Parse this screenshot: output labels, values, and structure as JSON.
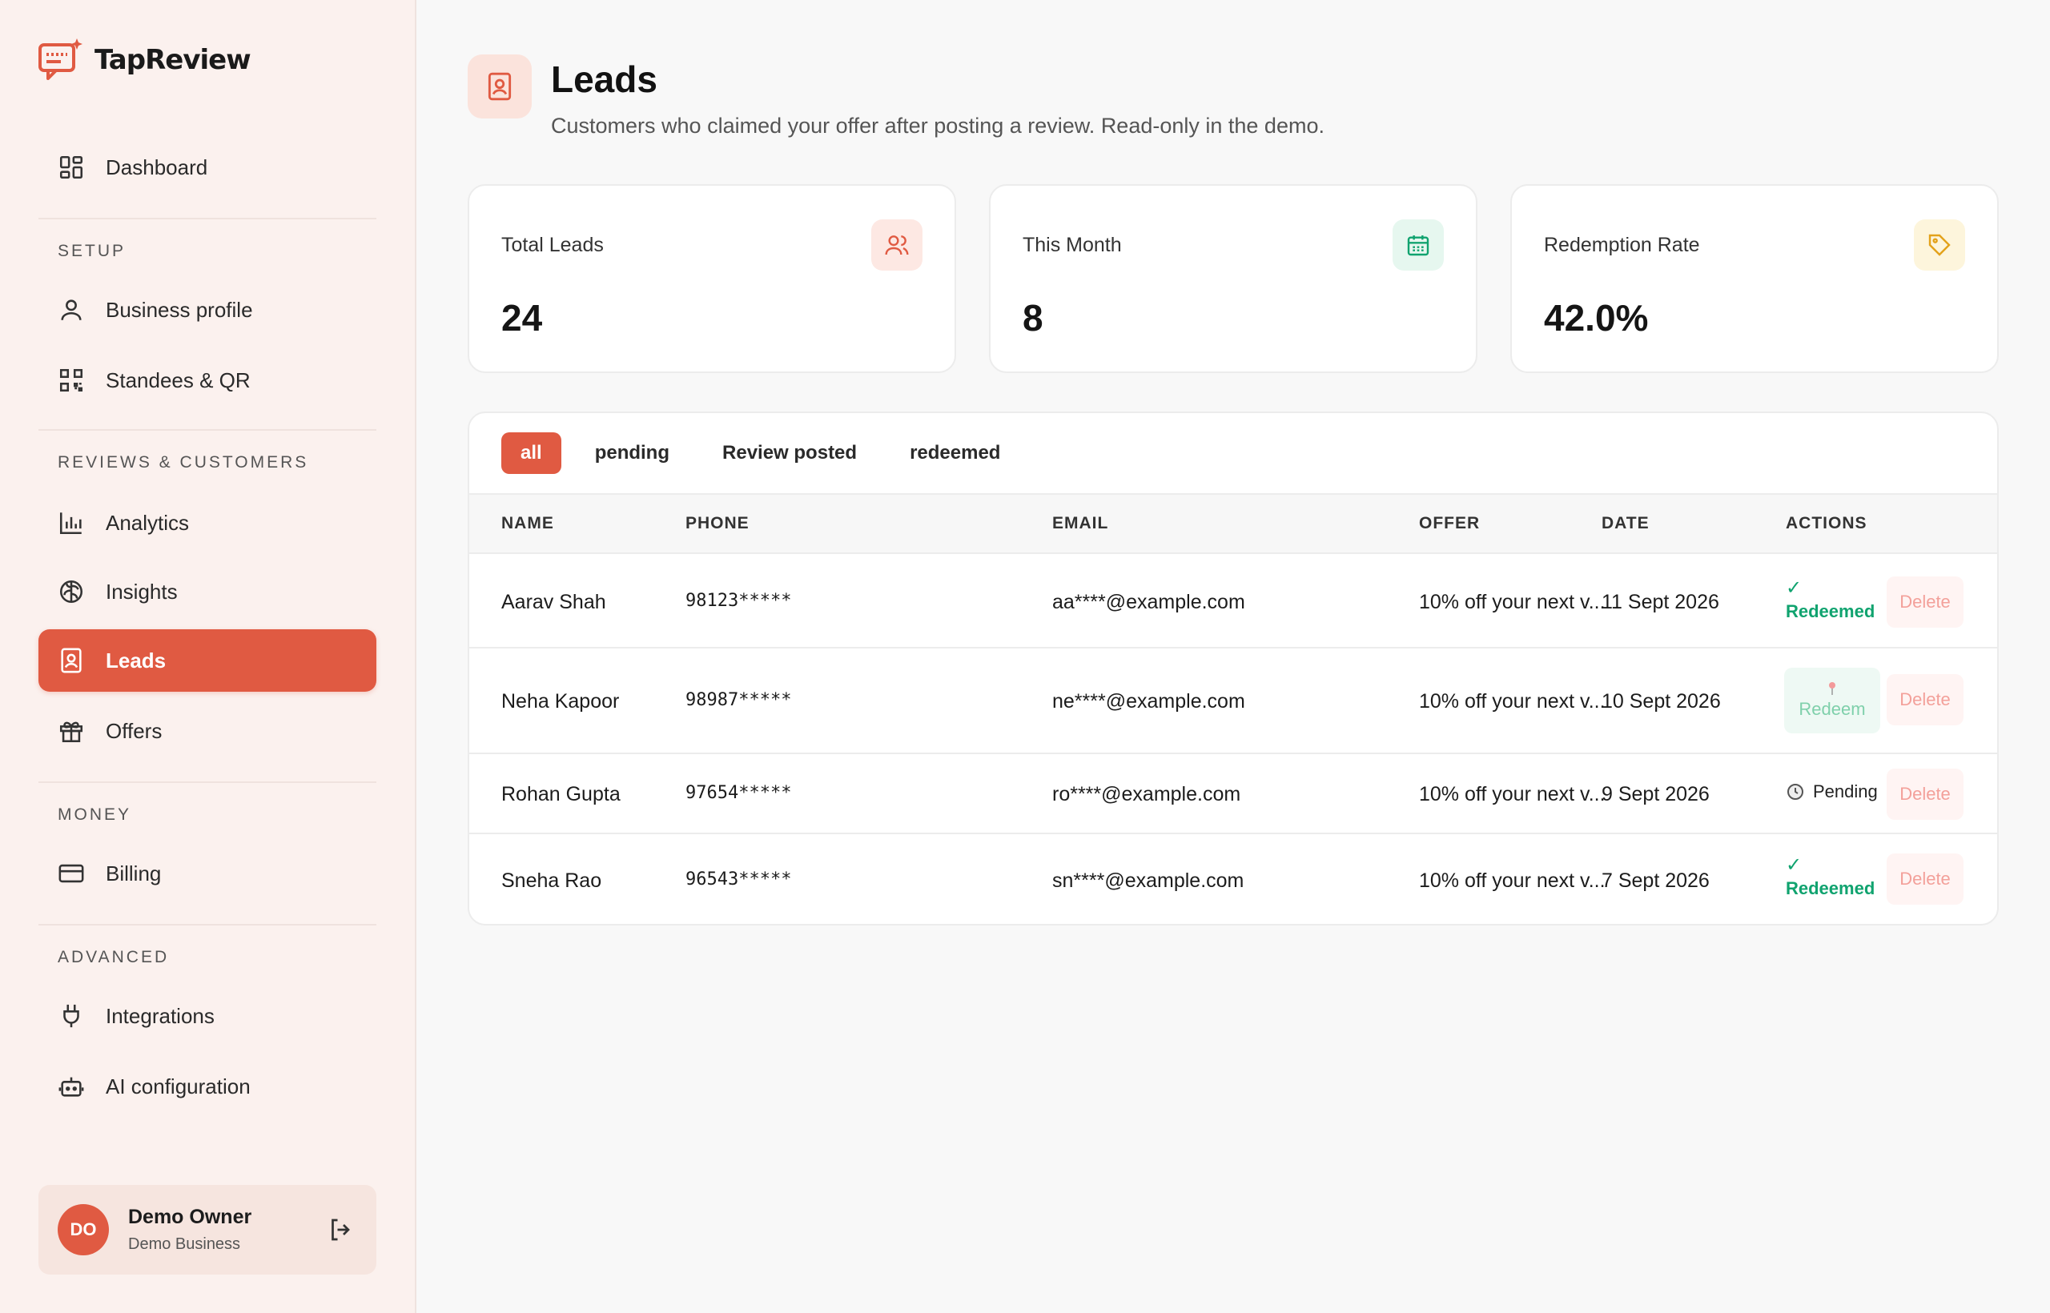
{
  "app": {
    "name": "TapReview"
  },
  "sidebar": {
    "dashboard": "Dashboard",
    "sections": {
      "setup": "SETUP",
      "reviews": "REVIEWS & CUSTOMERS",
      "money": "MONEY",
      "advanced": "ADVANCED"
    },
    "items": {
      "business_profile": "Business profile",
      "standees": "Standees & QR",
      "analytics": "Analytics",
      "insights": "Insights",
      "leads": "Leads",
      "offers": "Offers",
      "billing": "Billing",
      "integrations": "Integrations",
      "ai_config": "AI configuration"
    },
    "active": "leads",
    "user": {
      "initials": "DO",
      "name": "Demo Owner",
      "business": "Demo Business"
    }
  },
  "page": {
    "title": "Leads",
    "subtitle": "Customers who claimed your offer after posting a review. Read-only in the demo."
  },
  "stats": [
    {
      "label": "Total Leads",
      "value": "24",
      "icon": "users-icon",
      "color": "#e05a42",
      "bg": "#fde8e3"
    },
    {
      "label": "This Month",
      "value": "8",
      "icon": "calendar-icon",
      "color": "#10a36f",
      "bg": "#e6f7ef"
    },
    {
      "label": "Redemption Rate",
      "value": "42.0%",
      "icon": "tag-icon",
      "color": "#e3a21a",
      "bg": "#fdf5dc"
    }
  ],
  "filters": {
    "tabs": [
      "all",
      "pending",
      "Review posted",
      "redeemed"
    ],
    "active": "all"
  },
  "table": {
    "columns": [
      "NAME",
      "PHONE",
      "EMAIL",
      "OFFER",
      "DATE",
      "ACTIONS"
    ],
    "rows": [
      {
        "name": "Aarav Shah",
        "phone": "98123*****",
        "email": "aa****@example.com",
        "offer": "10% off your next v...",
        "date": "11 Sept 2026",
        "status": "redeemed",
        "status_label": "Redeemed",
        "check": "✓",
        "delete": "Delete"
      },
      {
        "name": "Neha Kapoor",
        "phone": "98987*****",
        "email": "ne****@example.com",
        "offer": "10% off your next v...",
        "date": "10 Sept 2026",
        "status": "redeem",
        "status_label": "Redeem",
        "delete": "Delete"
      },
      {
        "name": "Rohan Gupta",
        "phone": "97654*****",
        "email": "ro****@example.com",
        "offer": "10% off your next v...",
        "date": "9 Sept 2026",
        "status": "pending",
        "status_label": "Pending",
        "delete": "Delete"
      },
      {
        "name": "Sneha Rao",
        "phone": "96543*****",
        "email": "sn****@example.com",
        "offer": "10% off your next v...",
        "date": "7 Sept 2026",
        "status": "redeemed",
        "status_label": "Redeemed",
        "check": "✓",
        "delete": "Delete"
      }
    ]
  },
  "colors": {
    "accent": "#e05a42",
    "success": "#10a36f",
    "sidebar_bg": "#fbf1ee"
  }
}
